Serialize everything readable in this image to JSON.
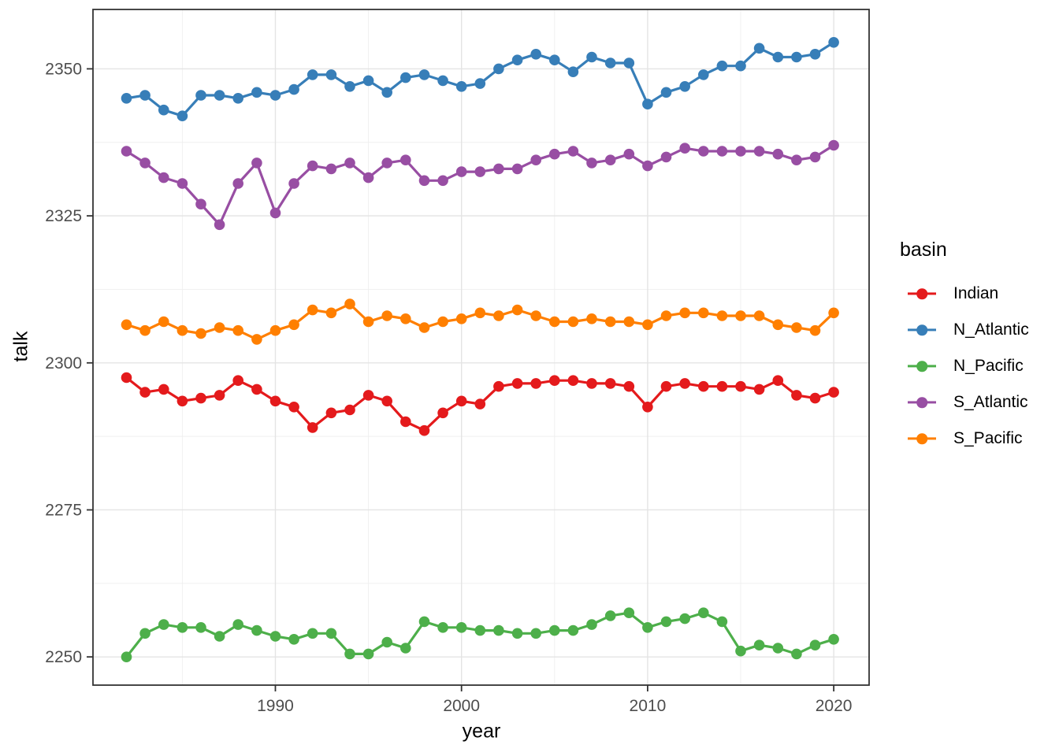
{
  "figure": {
    "x_axis_title": "year",
    "y_axis_title": "talk",
    "legend_title": "basin"
  },
  "chart_data": {
    "type": "line",
    "title": "",
    "xlabel": "year",
    "ylabel": "talk",
    "legend_title": "basin",
    "legend_position": "right",
    "grid": "major and minor, light grey on white, dark panel border",
    "marker": "filled circle on solid line",
    "x": [
      1982,
      1983,
      1984,
      1985,
      1986,
      1987,
      1988,
      1989,
      1990,
      1991,
      1992,
      1993,
      1994,
      1995,
      1996,
      1997,
      1998,
      1999,
      2000,
      2001,
      2002,
      2003,
      2004,
      2005,
      2006,
      2007,
      2008,
      2009,
      2010,
      2011,
      2012,
      2013,
      2014,
      2015,
      2016,
      2017,
      2018,
      2019,
      2020
    ],
    "x_ticks": [
      1990,
      2000,
      2010,
      2020
    ],
    "x_minor_ticks": [
      1985,
      1995,
      2005,
      2015
    ],
    "y_ticks": [
      2250,
      2275,
      2300,
      2325,
      2350
    ],
    "y_minor_ticks": [
      2262.5,
      2287.5,
      2312.5,
      2337.5
    ],
    "xlim": [
      1980.2,
      2021.9
    ],
    "ylim": [
      2245.2,
      2360.1
    ],
    "series": [
      {
        "name": "Indian",
        "color": "#E41A1C",
        "values": [
          2297.5,
          2295,
          2295.5,
          2293.5,
          2294,
          2294.5,
          2297,
          2295.5,
          2293.5,
          2292.5,
          2289,
          2291.5,
          2292,
          2294.5,
          2293.5,
          2290,
          2288.5,
          2291.5,
          2293.5,
          2293,
          2296,
          2296.5,
          2296.5,
          2297,
          2297,
          2296.5,
          2296.5,
          2296,
          2292.5,
          2296,
          2296.5,
          2296,
          2296,
          2296,
          2295.5,
          2297,
          2294.5,
          2294,
          2295
        ]
      },
      {
        "name": "N_Atlantic",
        "color": "#377EB8",
        "values": [
          2345,
          2345.5,
          2343,
          2342,
          2345.5,
          2345.5,
          2345,
          2346,
          2345.5,
          2346.5,
          2349,
          2349,
          2347,
          2348,
          2346,
          2348.5,
          2349,
          2348,
          2347,
          2347.5,
          2350,
          2351.5,
          2352.5,
          2351.5,
          2349.5,
          2352,
          2351,
          2351,
          2344,
          2346,
          2347,
          2349,
          2350.5,
          2350.5,
          2353.5,
          2352,
          2352,
          2352.5,
          2354.5
        ]
      },
      {
        "name": "N_Pacific",
        "color": "#4DAF4A",
        "values": [
          2250,
          2254,
          2255.5,
          2255,
          2255,
          2253.5,
          2255.5,
          2254.5,
          2253.5,
          2253,
          2254,
          2254,
          2250.5,
          2250.5,
          2252.5,
          2251.5,
          2256,
          2255,
          2255,
          2254.5,
          2254.5,
          2254,
          2254,
          2254.5,
          2254.5,
          2255.5,
          2257,
          2257.5,
          2255,
          2256,
          2256.5,
          2257.5,
          2256,
          2251,
          2252,
          2251.5,
          2250.5,
          2252,
          2253
        ]
      },
      {
        "name": "S_Atlantic",
        "color": "#984EA3",
        "values": [
          2336,
          2334,
          2331.5,
          2330.5,
          2327,
          2323.5,
          2330.5,
          2334,
          2325.5,
          2330.5,
          2333.5,
          2333,
          2334,
          2331.5,
          2334,
          2334.5,
          2331,
          2331,
          2332.5,
          2332.5,
          2333,
          2333,
          2334.5,
          2335.5,
          2336,
          2334,
          2334.5,
          2335.5,
          2333.5,
          2335,
          2336.5,
          2336,
          2336,
          2336,
          2336,
          2335.5,
          2334.5,
          2335,
          2337
        ]
      },
      {
        "name": "S_Pacific",
        "color": "#FF7F00",
        "values": [
          2306.5,
          2305.5,
          2307,
          2305.5,
          2305,
          2306,
          2305.5,
          2304,
          2305.5,
          2306.5,
          2309,
          2308.5,
          2310,
          2307,
          2308,
          2307.5,
          2306,
          2307,
          2307.5,
          2308.5,
          2308,
          2309,
          2308,
          2307,
          2307,
          2307.5,
          2307,
          2307,
          2306.5,
          2308,
          2308.5,
          2308.5,
          2308,
          2308,
          2308,
          2306.5,
          2306,
          2305.5,
          2308.5
        ]
      }
    ]
  },
  "style_colors": {
    "panel_border": "#333333",
    "major_grid": "#e4e4e4",
    "minor_grid": "#efefef",
    "tick_label": "#4d4d4d",
    "tick_mark": "#333333",
    "background": "#ffffff"
  }
}
